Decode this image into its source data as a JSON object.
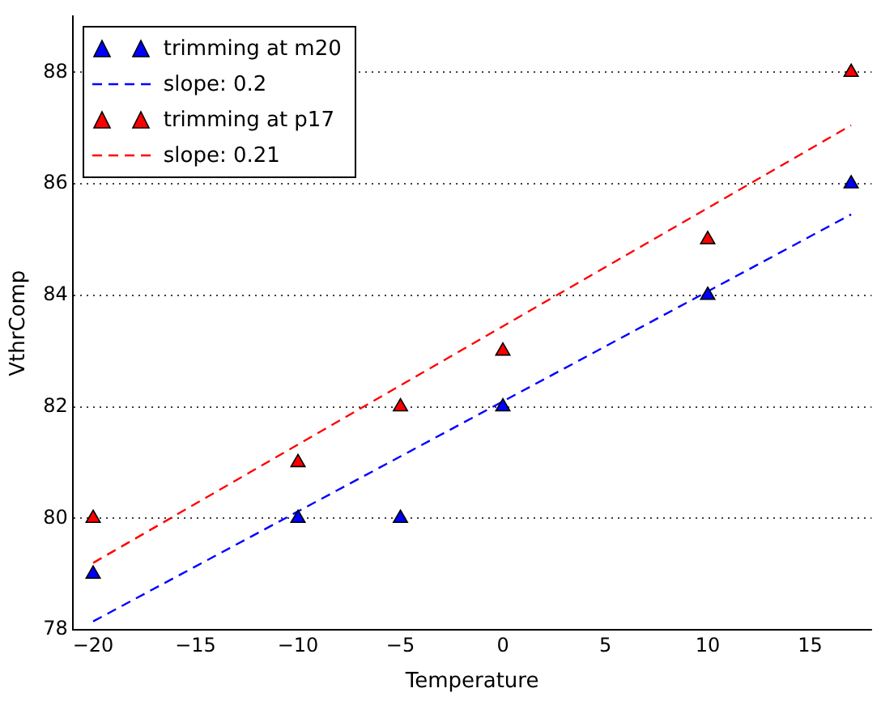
{
  "chart_data": {
    "type": "scatter",
    "xlabel": "Temperature",
    "ylabel": "VthrComp",
    "xlim": [
      -21,
      18
    ],
    "ylim": [
      78,
      89
    ],
    "xticks": [
      -20,
      -15,
      -10,
      -5,
      0,
      5,
      10,
      15
    ],
    "yticks": [
      78,
      80,
      82,
      84,
      86,
      88
    ],
    "grid": "y",
    "legend": "top left",
    "marker": "triangle",
    "series": [
      {
        "name": "trimming at m20",
        "color": "#0000ff",
        "x": [
          -20,
          -10,
          -5,
          0,
          10,
          17
        ],
        "values": [
          79,
          80,
          80,
          82,
          84,
          86
        ]
      },
      {
        "name": "slope: 0.2",
        "type": "line",
        "line_style": "dashed",
        "marker": "none",
        "color": "#0000ff",
        "x": [
          -20,
          17
        ],
        "values": [
          78.15,
          85.45
        ]
      },
      {
        "name": "trimming at p17",
        "color": "#ff0000",
        "x": [
          -20,
          -10,
          -5,
          0,
          10,
          17
        ],
        "values": [
          80,
          81,
          82,
          83,
          85,
          88
        ]
      },
      {
        "name": "slope: 0.21",
        "type": "line",
        "line_style": "dashed",
        "marker": "none",
        "color": "#ff0000",
        "x": [
          -20,
          17
        ],
        "values": [
          79.2,
          87.05
        ]
      }
    ]
  }
}
